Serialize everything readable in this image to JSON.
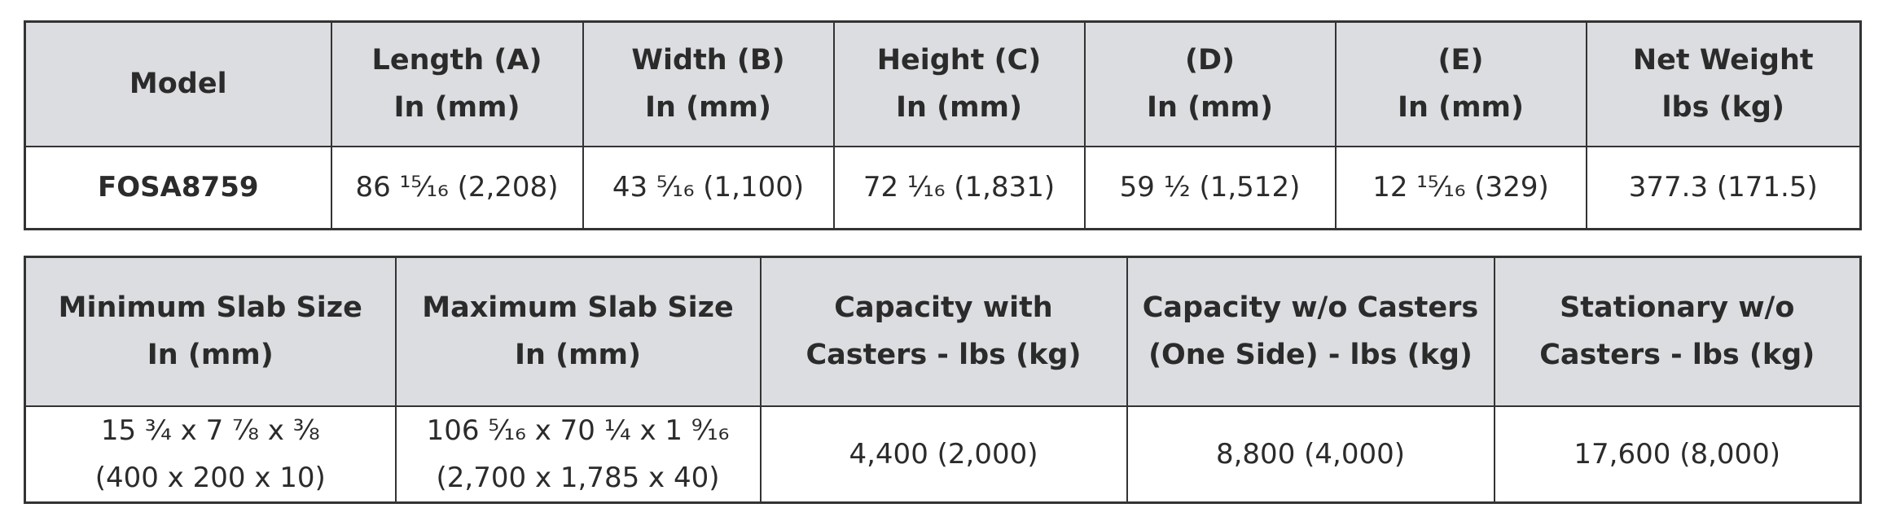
{
  "tables": [
    {
      "header": [
        [
          "Model"
        ],
        [
          "Length (A)",
          "In (mm)"
        ],
        [
          "Width (B)",
          "In (mm)"
        ],
        [
          "Height (C)",
          "In (mm)"
        ],
        [
          "(D)",
          "In (mm)"
        ],
        [
          "(E)",
          "In (mm)"
        ],
        [
          "Net Weight",
          "lbs (kg)"
        ]
      ],
      "rows": [
        [
          [
            "FOSA8759"
          ],
          [
            "86 ¹⁵⁄₁₆ (2,208)"
          ],
          [
            "43 ⁵⁄₁₆ (1,100)"
          ],
          [
            "72 ¹⁄₁₆ (1,831)"
          ],
          [
            "59 ½ (1,512)"
          ],
          [
            "12 ¹⁵⁄₁₆ (329)"
          ],
          [
            "377.3 (171.5)"
          ]
        ]
      ]
    },
    {
      "header": [
        [
          "Minimum Slab Size",
          "In (mm)"
        ],
        [
          "Maximum Slab Size",
          "In (mm)"
        ],
        [
          "Capacity with",
          "Casters - lbs (kg)"
        ],
        [
          "Capacity w/o Casters",
          "(One Side) - lbs (kg)"
        ],
        [
          "Stationary w/o",
          "Casters - lbs (kg)"
        ]
      ],
      "rows": [
        [
          [
            "15 ¾ x 7 ⅞ x ⅜",
            "(400 x 200 x 10)"
          ],
          [
            "106 ⁵⁄₁₆ x 70 ¼ x 1 ⁹⁄₁₆",
            "(2,700 x 1,785 x 40)"
          ],
          [
            "4,400 (2,000)"
          ],
          [
            "8,800 (4,000)"
          ],
          [
            "17,600 (8,000)"
          ]
        ]
      ]
    }
  ]
}
